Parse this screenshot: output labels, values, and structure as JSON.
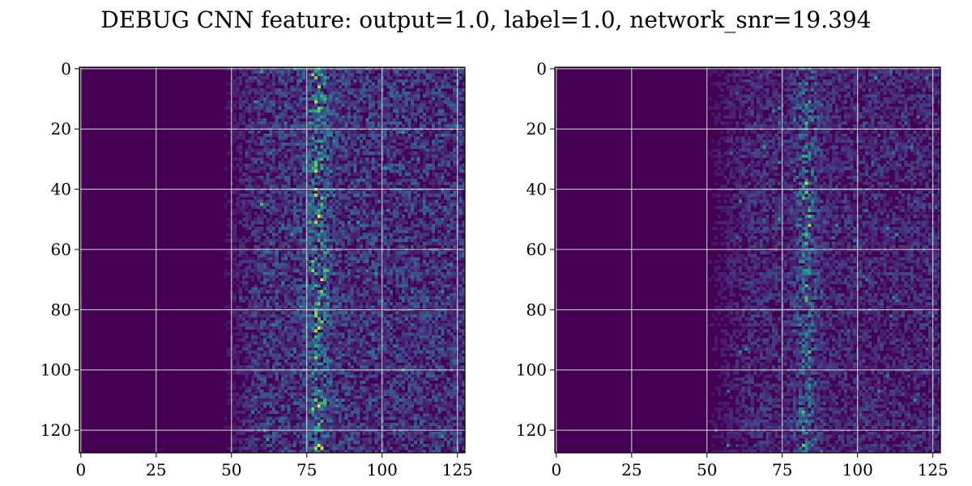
{
  "figure": {
    "title": "DEBUG CNN feature: output=1.0, label=1.0, network_snr=19.394"
  },
  "chart_data": [
    {
      "type": "heatmap",
      "title": "",
      "xlabel": "",
      "ylabel": "",
      "colormap": "viridis",
      "xlim": [
        0,
        127
      ],
      "ylim": [
        127,
        0
      ],
      "grid": true,
      "x_ticks": [
        0,
        25,
        50,
        75,
        100,
        125
      ],
      "y_ticks": [
        0,
        20,
        40,
        60,
        80,
        100,
        120
      ],
      "shape": [
        128,
        128
      ],
      "pattern": {
        "flat_until_col": 50,
        "activity_start_col": 55,
        "hotspot_col": 79,
        "hotspot_width": 4,
        "noise_level": 0.22,
        "peak_level": 1.0
      }
    },
    {
      "type": "heatmap",
      "title": "",
      "xlabel": "",
      "ylabel": "",
      "colormap": "viridis",
      "xlim": [
        0,
        127
      ],
      "ylim": [
        127,
        0
      ],
      "grid": true,
      "x_ticks": [
        0,
        25,
        50,
        75,
        100,
        125
      ],
      "y_ticks": [
        0,
        20,
        40,
        60,
        80,
        100,
        120
      ],
      "shape": [
        128,
        128
      ],
      "pattern": {
        "flat_until_col": 50,
        "activity_start_col": 58,
        "hotspot_col": 83,
        "hotspot_width": 3.5,
        "noise_level": 0.14,
        "peak_level": 0.9
      }
    }
  ]
}
